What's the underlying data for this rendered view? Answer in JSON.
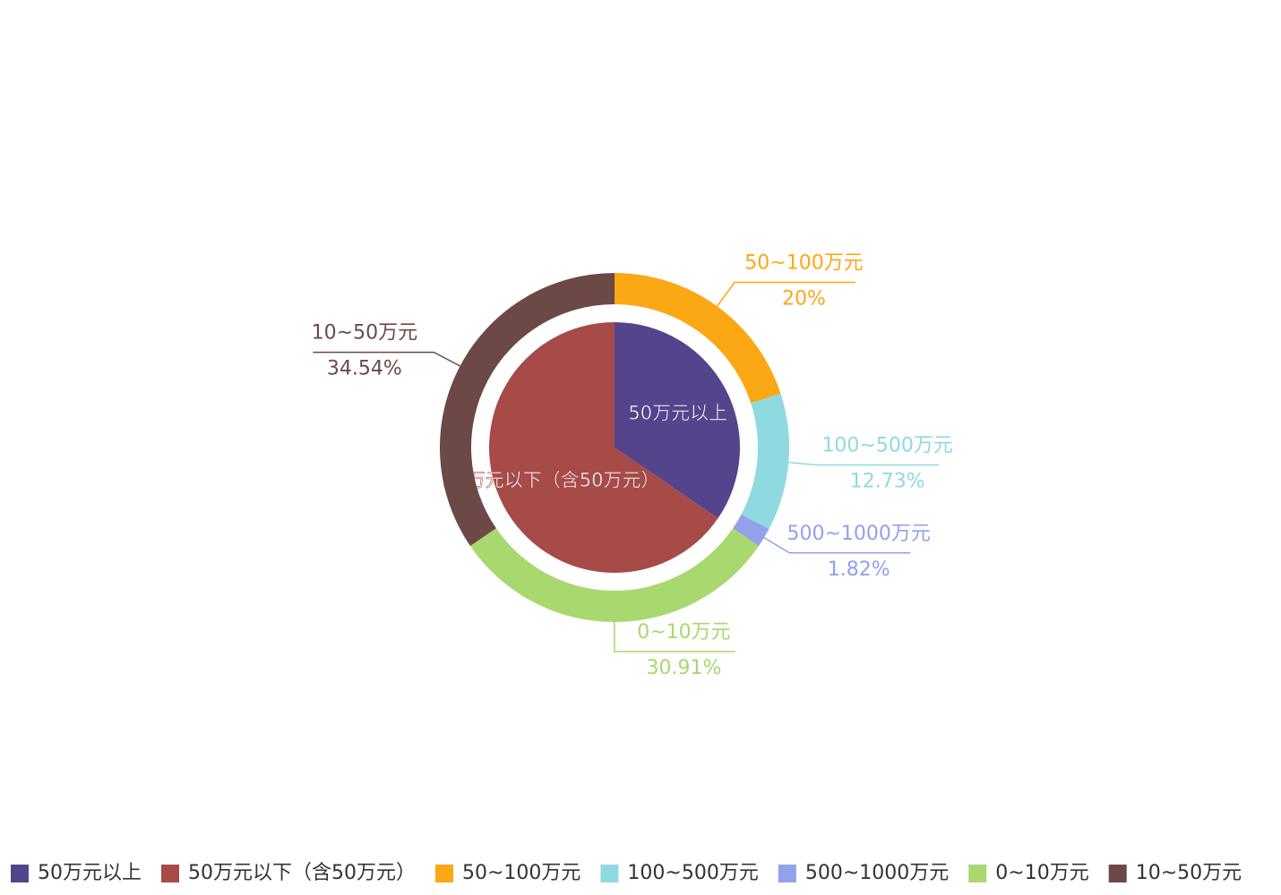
{
  "chart_data": {
    "type": "pie",
    "inner": {
      "categories": [
        "50万元以上",
        "50万元以下（含50万元）"
      ],
      "values": [
        34.55,
        65.45
      ],
      "colors": [
        "#54448c",
        "#a64b48"
      ]
    },
    "outer": {
      "categories": [
        "50~100万元",
        "100~500万元",
        "500~1000万元",
        "0~10万元",
        "10~50万元"
      ],
      "values": [
        20,
        12.73,
        1.82,
        30.91,
        34.54
      ],
      "value_labels": [
        "20%",
        "12.73%",
        "1.82%",
        "30.91%",
        "34.54%"
      ],
      "colors": [
        "#fca714",
        "#8fd9e1",
        "#93a1ea",
        "#a8d86e",
        "#6c4946"
      ]
    },
    "legend": "bottom"
  }
}
